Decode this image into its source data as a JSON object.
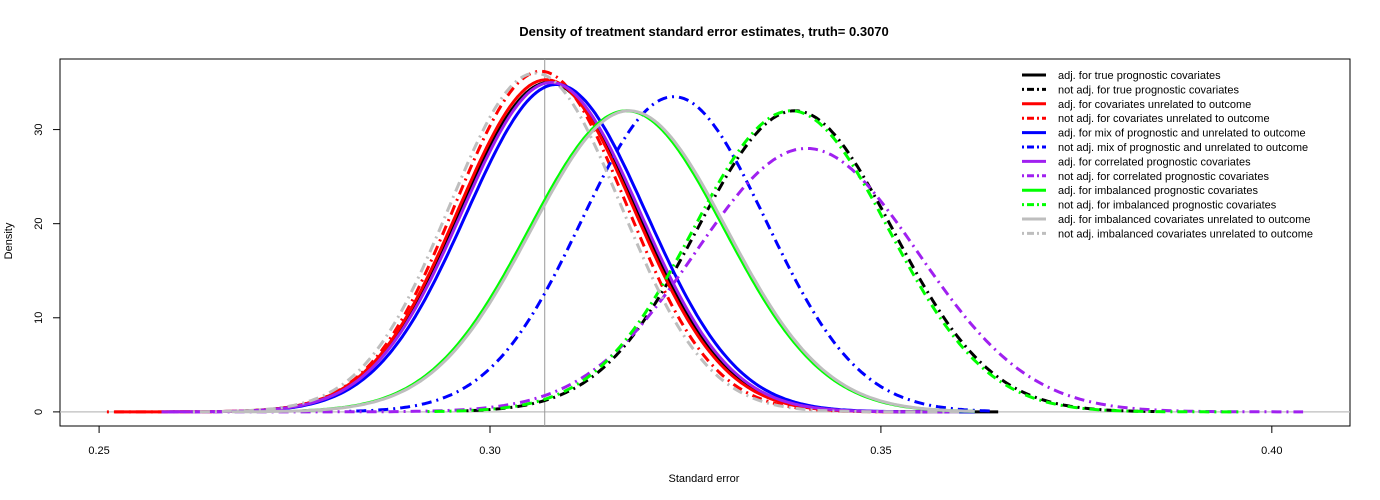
{
  "chart_data": {
    "type": "line",
    "title": "Density of treatment standard error estimates, truth= 0.3070",
    "xlabel": "Standard error",
    "ylabel": "Density",
    "xlim": [
      0.245,
      0.41
    ],
    "ylim": [
      -1.5,
      37.5
    ],
    "xticks": [
      "0.25",
      "0.30",
      "0.35",
      "0.40"
    ],
    "yticks": [
      "0",
      "10",
      "20",
      "30"
    ],
    "xtick_values": [
      0.25,
      0.3,
      0.35,
      0.4
    ],
    "ytick_values": [
      0,
      10,
      20,
      30
    ],
    "truth_line": 0.307,
    "grid": false,
    "legend_position": "top-right",
    "series": [
      {
        "name": "adj. for true prognostic covariates",
        "color": "#000000",
        "dash": "solid",
        "mean": 0.3075,
        "sd": 0.0114,
        "peak": 35.0,
        "xmin": 0.268,
        "xmax": 0.365
      },
      {
        "name": "not adj. for true prognostic covariates",
        "color": "#000000",
        "dash": "dotdash",
        "mean": 0.339,
        "sd": 0.0125,
        "peak": 32.0,
        "xmin": 0.297,
        "xmax": 0.385
      },
      {
        "name": "adj. for covariates unrelated to outcome",
        "color": "#ff0000",
        "dash": "solid",
        "mean": 0.3072,
        "sd": 0.0113,
        "peak": 35.3,
        "xmin": 0.252,
        "xmax": 0.36
      },
      {
        "name": "not adj. for covariates unrelated to outcome",
        "color": "#ff0000",
        "dash": "dotdash",
        "mean": 0.3065,
        "sd": 0.011,
        "peak": 36.2,
        "xmin": 0.251,
        "xmax": 0.36
      },
      {
        "name": "adj. for mix of prognostic and unrelated to outcome",
        "color": "#0000ff",
        "dash": "solid",
        "mean": 0.3085,
        "sd": 0.0115,
        "peak": 34.8,
        "xmin": 0.27,
        "xmax": 0.362
      },
      {
        "name": "not adj. mix of prognostic and unrelated to outcome",
        "color": "#0000ff",
        "dash": "dotdash",
        "mean": 0.3235,
        "sd": 0.0118,
        "peak": 33.5,
        "xmin": 0.282,
        "xmax": 0.364
      },
      {
        "name": "adj. for correlated prognostic covariates",
        "color": "#a020f0",
        "dash": "solid",
        "mean": 0.3078,
        "sd": 0.0114,
        "peak": 35.0,
        "xmin": 0.258,
        "xmax": 0.36
      },
      {
        "name": "not adj. for correlated prognostic covariates",
        "color": "#a020f0",
        "dash": "dotdash",
        "mean": 0.3405,
        "sd": 0.0142,
        "peak": 28.0,
        "xmin": 0.258,
        "xmax": 0.404
      },
      {
        "name": "adj. for imbalanced prognostic covariates",
        "color": "#00ff00",
        "dash": "solid",
        "mean": 0.3175,
        "sd": 0.0125,
        "peak": 32.0,
        "xmin": 0.276,
        "xmax": 0.362
      },
      {
        "name": "not adj. for imbalanced prognostic covariates",
        "color": "#00ff00",
        "dash": "dotdash",
        "mean": 0.3385,
        "sd": 0.0125,
        "peak": 32.0,
        "xmin": 0.292,
        "xmax": 0.396
      },
      {
        "name": "adj. for imbalanced covariates unrelated to outcome",
        "color": "#bebebe",
        "dash": "solid",
        "mean": 0.3178,
        "sd": 0.0125,
        "peak": 32.0,
        "xmin": 0.267,
        "xmax": 0.362
      },
      {
        "name": "not adj. imbalanced covariates unrelated to outcome",
        "color": "#bebebe",
        "dash": "dotdash",
        "mean": 0.3058,
        "sd": 0.011,
        "peak": 36.0,
        "xmin": 0.262,
        "xmax": 0.36
      }
    ]
  }
}
